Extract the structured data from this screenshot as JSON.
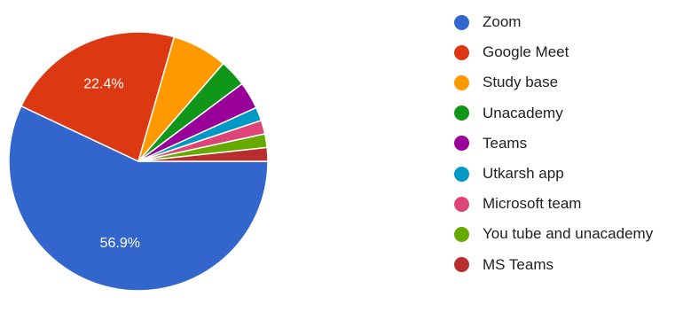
{
  "chart_data": {
    "type": "pie",
    "series": [
      {
        "name": "Zoom",
        "value": 56.9,
        "label": "56.9%",
        "color": "#3366cc"
      },
      {
        "name": "Google Meet",
        "value": 22.4,
        "label": "22.4%",
        "color": "#dc3912"
      },
      {
        "name": "Study base",
        "value": 6.9,
        "label": "",
        "color": "#ff9900"
      },
      {
        "name": "Unacademy",
        "value": 3.4,
        "label": "",
        "color": "#109618"
      },
      {
        "name": "Teams",
        "value": 3.4,
        "label": "",
        "color": "#990099"
      },
      {
        "name": "Utkarsh app",
        "value": 1.7,
        "label": "",
        "color": "#0099c6"
      },
      {
        "name": "Microsoft team",
        "value": 1.7,
        "label": "",
        "color": "#dd4477"
      },
      {
        "name": "You tube and unacademy",
        "value": 1.7,
        "label": "",
        "color": "#66aa00"
      },
      {
        "name": "MS Teams",
        "value": 1.7,
        "label": "",
        "color": "#b82e2e"
      }
    ],
    "start_angle": "3 o'clock",
    "direction": "clockwise",
    "legend_position": "right"
  }
}
